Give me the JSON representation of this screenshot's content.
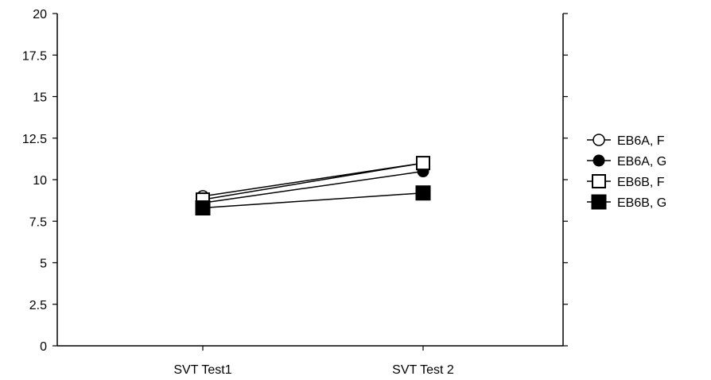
{
  "chart_data": {
    "type": "line",
    "title": "",
    "xlabel": "",
    "ylabel": "",
    "categories": [
      "SVT Test1",
      "SVT Test 2"
    ],
    "ylim": [
      0,
      20
    ],
    "yticks": [
      "0",
      "2.5",
      "5",
      "7.5",
      "10",
      "12.5",
      "15",
      "17.5",
      "20"
    ],
    "grid": false,
    "legend_position": "right",
    "series": [
      {
        "name": "EB6A, F",
        "marker": "open-circle",
        "values": [
          9.0,
          11.0
        ]
      },
      {
        "name": "EB6A, G",
        "marker": "filled-circle",
        "values": [
          8.6,
          10.5
        ]
      },
      {
        "name": "EB6B, F",
        "marker": "open-square",
        "values": [
          8.8,
          11.0
        ]
      },
      {
        "name": "EB6B, G",
        "marker": "filled-square",
        "values": [
          8.3,
          9.2
        ]
      }
    ],
    "colors": {
      "line": "#000000",
      "background": "#ffffff"
    }
  }
}
